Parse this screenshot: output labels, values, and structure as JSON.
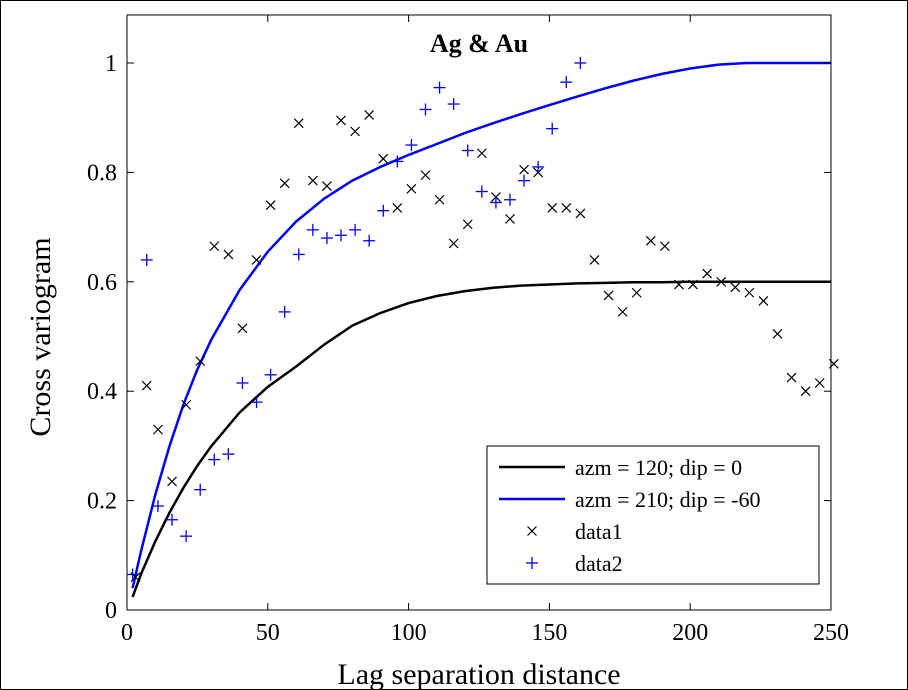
{
  "chart_data": {
    "type": "scatter",
    "title": "Ag & Au",
    "xlabel": "Lag separation distance",
    "ylabel": "Cross variogram",
    "xlim": [
      0,
      250
    ],
    "ylim": [
      0,
      1
    ],
    "xticks": [
      0,
      50,
      100,
      150,
      200,
      250
    ],
    "yticks": [
      0,
      0.2,
      0.4,
      0.6,
      0.8,
      1
    ],
    "xtick_labels": [
      "0",
      "50",
      "100",
      "150",
      "200",
      "250"
    ],
    "ytick_labels": [
      "0",
      "0.2",
      "0.4",
      "0.6",
      "0.8",
      "1"
    ],
    "grid": false,
    "legend_position": "bottom-right",
    "series": [
      {
        "name": "azm = 120; dip = 0",
        "kind": "line",
        "color": "#000000",
        "x": [
          2,
          5,
          10,
          15,
          20,
          25,
          30,
          40,
          50,
          60,
          70,
          80,
          90,
          100,
          110,
          120,
          130,
          140,
          150,
          160,
          170,
          180,
          190,
          200,
          210,
          220,
          230,
          240,
          250
        ],
        "y": [
          0.024,
          0.066,
          0.125,
          0.177,
          0.223,
          0.264,
          0.3,
          0.361,
          0.408,
          0.445,
          0.485,
          0.52,
          0.543,
          0.561,
          0.574,
          0.583,
          0.589,
          0.593,
          0.595,
          0.597,
          0.598,
          0.599,
          0.599,
          0.6,
          0.6,
          0.6,
          0.6,
          0.6,
          0.6
        ]
      },
      {
        "name": "azm = 210; dip = -60",
        "kind": "line",
        "color": "#0000ff",
        "x": [
          2,
          5,
          10,
          15,
          20,
          25,
          30,
          40,
          50,
          60,
          70,
          80,
          90,
          100,
          110,
          120,
          130,
          140,
          150,
          160,
          170,
          180,
          190,
          200,
          210,
          220,
          230,
          240,
          250
        ],
        "y": [
          0.04,
          0.108,
          0.21,
          0.298,
          0.375,
          0.44,
          0.495,
          0.585,
          0.655,
          0.71,
          0.752,
          0.785,
          0.81,
          0.832,
          0.852,
          0.872,
          0.89,
          0.907,
          0.923,
          0.939,
          0.954,
          0.968,
          0.98,
          0.99,
          0.997,
          1.0,
          1.0,
          1.0,
          1.0
        ]
      },
      {
        "name": "data1",
        "kind": "scatter",
        "marker": "x",
        "color": "#000000",
        "x": [
          3,
          7,
          11,
          16,
          21,
          26,
          31,
          36,
          41,
          46,
          51,
          56,
          61,
          66,
          71,
          76,
          81,
          86,
          91,
          96,
          101,
          106,
          111,
          116,
          121,
          126,
          131,
          136,
          141,
          146,
          151,
          156,
          161,
          166,
          171,
          176,
          181,
          186,
          191,
          196,
          201,
          206,
          211,
          216,
          221,
          226,
          231,
          236,
          241,
          246,
          251
        ],
        "y": [
          0.06,
          0.41,
          0.33,
          0.235,
          0.375,
          0.455,
          0.665,
          0.65,
          0.515,
          0.64,
          0.74,
          0.78,
          0.89,
          0.785,
          0.775,
          0.895,
          0.875,
          0.905,
          0.825,
          0.735,
          0.77,
          0.795,
          0.75,
          0.67,
          0.705,
          0.835,
          0.755,
          0.715,
          0.805,
          0.8,
          0.735,
          0.735,
          0.725,
          0.64,
          0.575,
          0.545,
          0.58,
          0.675,
          0.665,
          0.595,
          0.595,
          0.615,
          0.6,
          0.59,
          0.58,
          0.565,
          0.505,
          0.425,
          0.4,
          0.415,
          0.45
        ]
      },
      {
        "name": "data2",
        "kind": "scatter",
        "marker": "+",
        "color": "#0000ff",
        "x": [
          2,
          7,
          11,
          16,
          21,
          26,
          31,
          36,
          41,
          46,
          51,
          56,
          61,
          66,
          71,
          76,
          81,
          86,
          91,
          96,
          101,
          106,
          111,
          116,
          121,
          126,
          131,
          136,
          141,
          146,
          151,
          156,
          161
        ],
        "y": [
          0.065,
          0.64,
          0.19,
          0.165,
          0.135,
          0.22,
          0.275,
          0.285,
          0.415,
          0.38,
          0.43,
          0.545,
          0.65,
          0.695,
          0.68,
          0.685,
          0.695,
          0.675,
          0.73,
          0.82,
          0.85,
          0.915,
          0.955,
          0.925,
          0.84,
          0.765,
          0.745,
          0.75,
          0.785,
          0.81,
          0.88,
          0.965,
          1.0
        ]
      }
    ]
  }
}
